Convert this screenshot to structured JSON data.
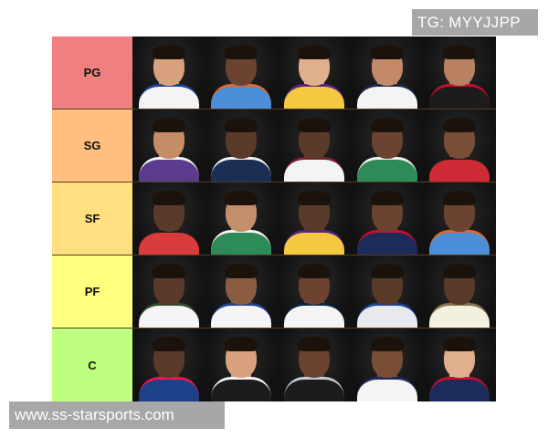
{
  "watermarks": {
    "top": "TG: MYYJJPP",
    "bottom": "www.ss-starsports.com"
  },
  "tiers": [
    {
      "label": "PG",
      "color": "#f08080",
      "players": [
        {
          "jersey": "#f4f4f4",
          "trim": "#1d428a",
          "skin": "#d9a27f"
        },
        {
          "jersey": "#4a8fd8",
          "trim": "#e06a2a",
          "skin": "#6b4330"
        },
        {
          "jersey": "#f5c842",
          "trim": "#552583",
          "skin": "#e0b08e"
        },
        {
          "jersey": "#f4f4f4",
          "trim": "#1d2b4a",
          "skin": "#c48a68"
        },
        {
          "jersey": "#1c1c1c",
          "trim": "#c8102e",
          "skin": "#b88262"
        }
      ]
    },
    {
      "label": "SG",
      "color": "#ffbf7f",
      "players": [
        {
          "jersey": "#5a3b8c",
          "trim": "#f4f4f4",
          "skin": "#c58c68"
        },
        {
          "jersey": "#1b2f55",
          "trim": "#f4f4f4",
          "skin": "#5a3a28"
        },
        {
          "jersey": "#f4f4f4",
          "trim": "#7a1f33",
          "skin": "#5a3a28"
        },
        {
          "jersey": "#2e8b57",
          "trim": "#f4f4f4",
          "skin": "#6b4330"
        },
        {
          "jersey": "#ce2b37",
          "trim": "#1c1c1c",
          "skin": "#7a4e36"
        }
      ]
    },
    {
      "label": "SF",
      "color": "#ffdf7f",
      "players": [
        {
          "jersey": "#d93a3a",
          "trim": "#1c1c1c",
          "skin": "#5a3a28"
        },
        {
          "jersey": "#2e8b57",
          "trim": "#f4f4f4",
          "skin": "#c4906c"
        },
        {
          "jersey": "#f5c842",
          "trim": "#552583",
          "skin": "#5a3a28"
        },
        {
          "jersey": "#1d2b5a",
          "trim": "#c8102e",
          "skin": "#6b4330"
        },
        {
          "jersey": "#4a8fd8",
          "trim": "#e06a2a",
          "skin": "#6b4330"
        }
      ]
    },
    {
      "label": "PF",
      "color": "#ffff7f",
      "players": [
        {
          "jersey": "#f4f4f4",
          "trim": "#2d4a2a",
          "skin": "#5a3a28"
        },
        {
          "jersey": "#f4f4f4",
          "trim": "#1d428a",
          "skin": "#8a5c42"
        },
        {
          "jersey": "#f4f4f4",
          "trim": "#0c2340",
          "skin": "#6b4330"
        },
        {
          "jersey": "#e8e8ef",
          "trim": "#1d428a",
          "skin": "#5a3a28"
        },
        {
          "jersey": "#f4f0e0",
          "trim": "#85714d",
          "skin": "#5a3a28"
        }
      ]
    },
    {
      "label": "C",
      "color": "#bfff7f",
      "players": [
        {
          "jersey": "#1d428a",
          "trim": "#ed174c",
          "skin": "#5a3a28"
        },
        {
          "jersey": "#1c1c1c",
          "trim": "#f4f4f4",
          "skin": "#d9a27f"
        },
        {
          "jersey": "#1c1c1c",
          "trim": "#c4ced4",
          "skin": "#6b4330"
        },
        {
          "jersey": "#f4f4f4",
          "trim": "#1d2b5a",
          "skin": "#7a4e36"
        },
        {
          "jersey": "#1d2b5a",
          "trim": "#c8102e",
          "skin": "#e0b08e"
        }
      ]
    }
  ]
}
